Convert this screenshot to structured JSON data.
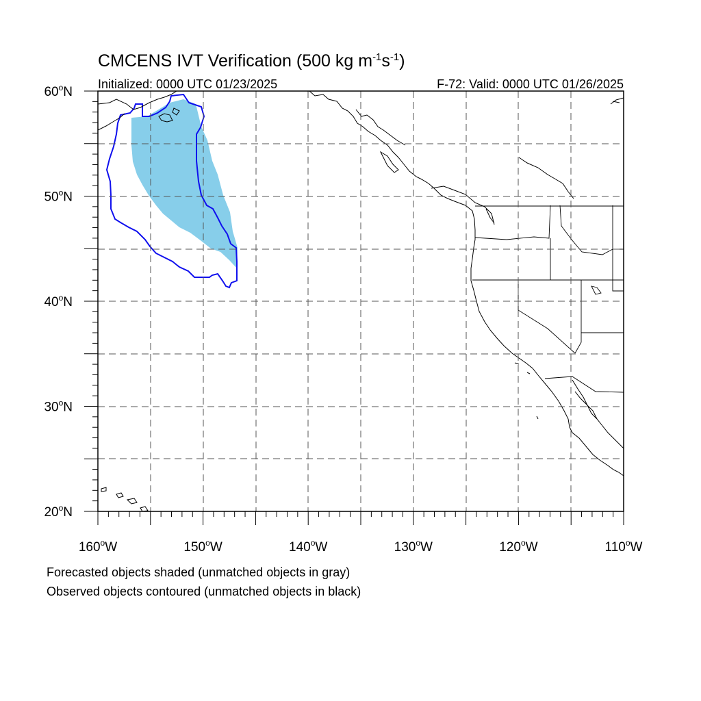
{
  "figure": {
    "title_main": "CMCENS IVT Verification (500 kg m",
    "title_sup1": "-1",
    "title_mid": "s",
    "title_sup2": "-1",
    "title_end": ")",
    "initialized": "Initialized: 0000 UTC 01/23/2025",
    "valid": "F-72: Valid: 0000 UTC 01/26/2025"
  },
  "axes": {
    "lat_labels": [
      {
        "lat": 60,
        "deg": "60",
        "hemi": "N"
      },
      {
        "lat": 50,
        "deg": "50",
        "hemi": "N"
      },
      {
        "lat": 40,
        "deg": "40",
        "hemi": "N"
      },
      {
        "lat": 30,
        "deg": "30",
        "hemi": "N"
      },
      {
        "lat": 20,
        "deg": "20",
        "hemi": "N"
      }
    ],
    "lon_labels": [
      {
        "lon": -160,
        "deg": "160",
        "hemi": "W"
      },
      {
        "lon": -150,
        "deg": "150",
        "hemi": "W"
      },
      {
        "lon": -140,
        "deg": "140",
        "hemi": "W"
      },
      {
        "lon": -130,
        "deg": "130",
        "hemi": "W"
      },
      {
        "lon": -120,
        "deg": "120",
        "hemi": "W"
      },
      {
        "lon": -110,
        "deg": "110",
        "hemi": "W"
      }
    ],
    "lat_range": [
      20,
      60
    ],
    "lon_range": [
      -160,
      -110
    ],
    "grid_spacing": 5
  },
  "legend": {
    "line1": "Forecasted objects shaded (unmatched objects in gray)",
    "line2": "Observed objects contoured (unmatched objects in black)"
  },
  "colors": {
    "forecast_shade": "#87ceea",
    "observed_contour": "#1010ee",
    "coast": "#000000",
    "grid": "#555555"
  }
}
